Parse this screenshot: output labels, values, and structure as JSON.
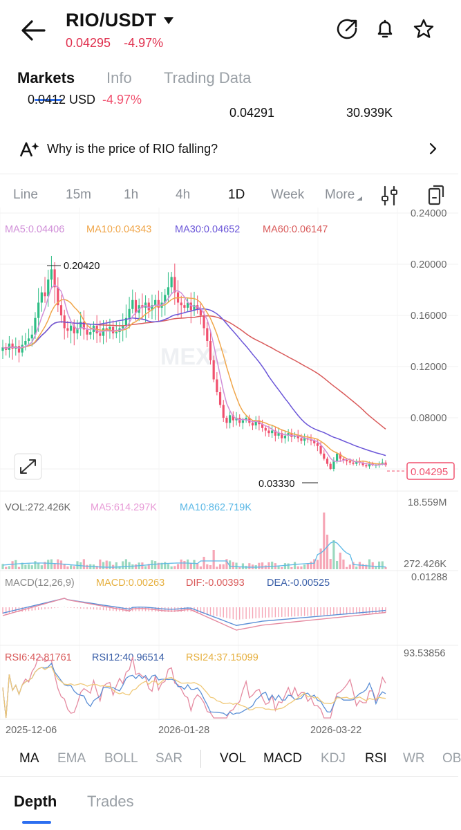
{
  "header": {
    "pair": "RIO/USDT",
    "price": "0.04295",
    "change": "-4.97%",
    "icons": [
      "back-arrow-icon",
      "dropdown-caret-icon",
      "share-icon",
      "bell-icon",
      "star-icon"
    ]
  },
  "main_tabs": [
    {
      "label": "Markets",
      "active": true
    },
    {
      "label": "Info",
      "active": false
    },
    {
      "label": "Trading Data",
      "active": false
    }
  ],
  "scrolled_row": {
    "left_partial": "0.0412 USD",
    "left_partial_pct": "-4.97%",
    "mid_value": "0.04291",
    "right_value": "30.939K"
  },
  "news": {
    "text": "Why is the price of RIO falling?",
    "icon": "ai-sparkle-icon"
  },
  "intervals": [
    {
      "label": "Line",
      "active": false
    },
    {
      "label": "15m",
      "active": false
    },
    {
      "label": "1h",
      "active": false
    },
    {
      "label": "4h",
      "active": false
    },
    {
      "label": "1D",
      "active": true
    },
    {
      "label": "Week",
      "active": false
    },
    {
      "label": "More",
      "active": false
    }
  ],
  "chart_data": {
    "type": "candlestick",
    "watermark": "MEXC",
    "ma_legend": {
      "ma5": "MA5:0.04406",
      "ma10": "MA10:0.04343",
      "ma30": "MA30:0.04652",
      "ma60": "MA60:0.06147"
    },
    "price_axis": [
      "0.24000",
      "0.20000",
      "0.16000",
      "0.12000",
      "0.08000"
    ],
    "ylim": [
      0.02,
      0.24
    ],
    "high_label": "0.20420",
    "low_label": "0.03330",
    "current_price": "0.04295",
    "colors": {
      "up": "#2ebd85",
      "down": "#f0506e",
      "ma5": "#d08ed8",
      "ma10": "#f0a64a",
      "ma30": "#6a55d8",
      "ma60": "#d95a5a"
    },
    "volume": {
      "legend": "VOL:272.426K",
      "ma5": "MA5:614.297K",
      "ma10": "MA10:862.719K",
      "max_label": "18.559M",
      "current_label": "272.426K"
    },
    "macd": {
      "legend": "MACD(12,26,9)",
      "macd": "MACD:0.00263",
      "dif": "DIF:-0.00393",
      "dea": "DEA:-0.00525",
      "max_label": "0.01288"
    },
    "rsi": {
      "rsi6": "RSI6:42.81761",
      "rsi12": "RSI12:40.96514",
      "rsi24": "RSI24:37.15099",
      "max_label": "93.53856"
    },
    "dates": [
      "2025-12-06",
      "2026-01-28",
      "2026-03-22"
    ],
    "close_series": [
      0.135,
      0.133,
      0.138,
      0.134,
      0.136,
      0.131,
      0.137,
      0.14,
      0.142,
      0.145,
      0.158,
      0.17,
      0.178,
      0.175,
      0.188,
      0.196,
      0.182,
      0.168,
      0.16,
      0.15,
      0.148,
      0.152,
      0.146,
      0.15,
      0.155,
      0.149,
      0.145,
      0.147,
      0.152,
      0.146,
      0.144,
      0.15,
      0.148,
      0.151,
      0.146,
      0.147,
      0.15,
      0.152,
      0.158,
      0.165,
      0.172,
      0.162,
      0.168,
      0.166,
      0.17,
      0.164,
      0.168,
      0.172,
      0.166,
      0.17,
      0.176,
      0.182,
      0.19,
      0.178,
      0.17,
      0.168,
      0.166,
      0.17,
      0.164,
      0.168,
      0.165,
      0.16,
      0.15,
      0.14,
      0.125,
      0.11,
      0.1,
      0.09,
      0.08,
      0.076,
      0.082,
      0.078,
      0.08,
      0.076,
      0.078,
      0.08,
      0.076,
      0.074,
      0.078,
      0.075,
      0.072,
      0.07,
      0.068,
      0.07,
      0.066,
      0.068,
      0.064,
      0.066,
      0.068,
      0.065,
      0.066,
      0.064,
      0.062,
      0.064,
      0.063,
      0.062,
      0.06,
      0.058,
      0.052,
      0.048,
      0.044,
      0.04,
      0.046,
      0.052,
      0.048,
      0.047,
      0.046,
      0.045,
      0.044,
      0.046,
      0.045,
      0.043,
      0.042,
      0.044,
      0.043,
      0.043,
      0.044,
      0.045,
      0.043
    ]
  },
  "indicator_tabs": [
    {
      "label": "MA",
      "on": true
    },
    {
      "label": "EMA",
      "on": false
    },
    {
      "label": "BOLL",
      "on": false
    },
    {
      "label": "SAR",
      "on": false
    },
    {
      "label": "VOL",
      "on": true
    },
    {
      "label": "MACD",
      "on": true
    },
    {
      "label": "KDJ",
      "on": false
    },
    {
      "label": "RSI",
      "on": true
    },
    {
      "label": "WR",
      "on": false
    },
    {
      "label": "OB",
      "on": false
    }
  ],
  "bottom_tabs": [
    {
      "label": "Depth",
      "active": true
    },
    {
      "label": "Trades",
      "active": false
    }
  ]
}
